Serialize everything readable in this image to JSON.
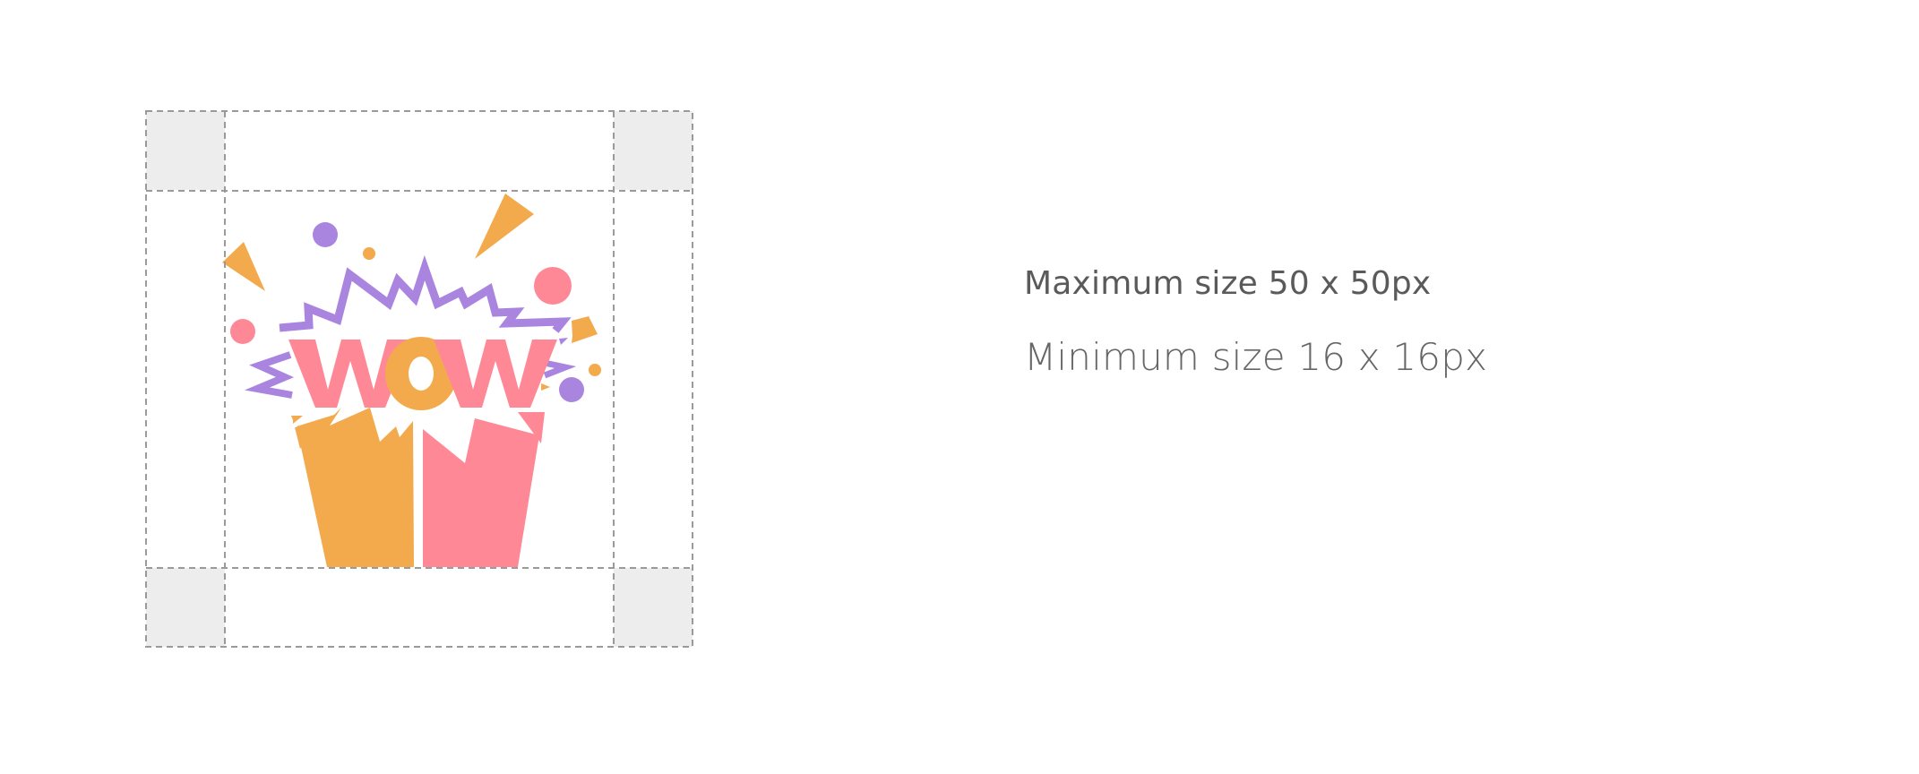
{
  "size_spec": {
    "max_label": "Maximum size 50 x 50px",
    "min_label": "Minimum size 16 x 16px"
  },
  "logo": {
    "wordmark": "WOW",
    "icon": "wow-gift-box-logo",
    "colors": {
      "pink": "#FF8896",
      "orange": "#F2AA4C",
      "purple": "#A985E0",
      "corner_fill": "#EDEDED",
      "guide_line": "#9A9A9A"
    }
  }
}
